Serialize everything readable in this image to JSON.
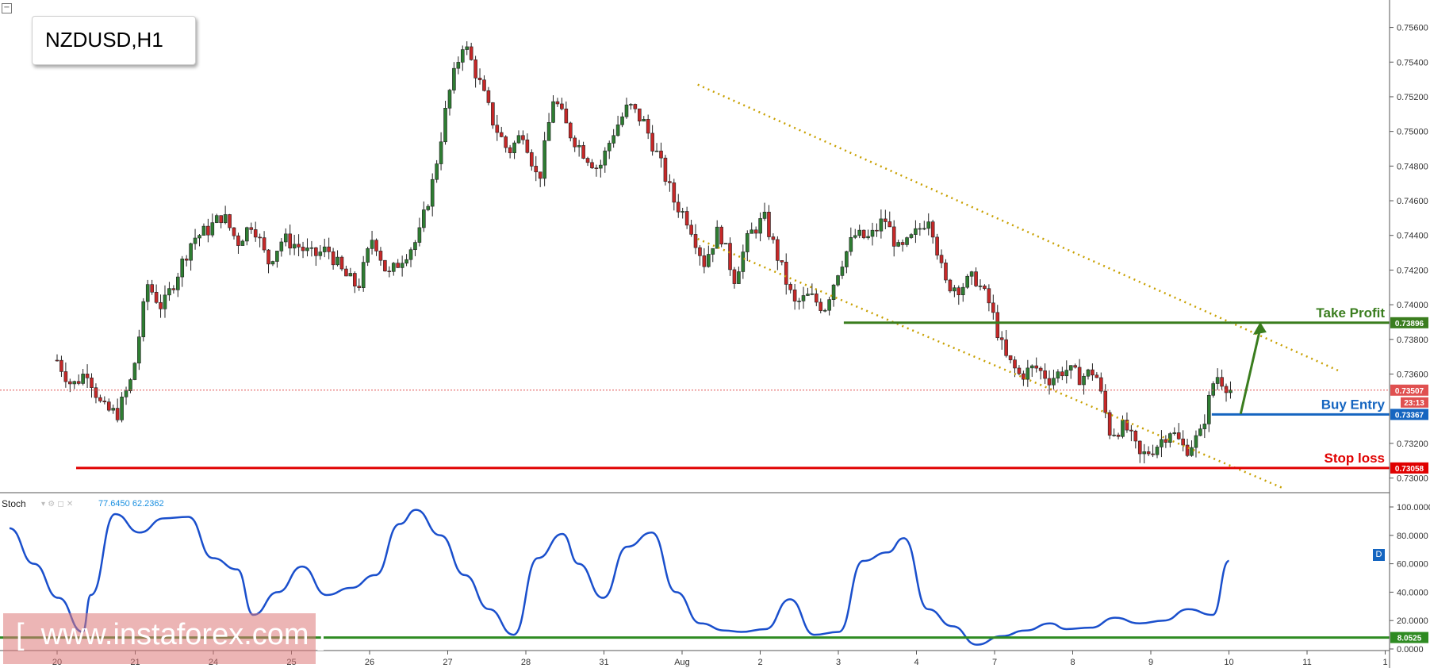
{
  "symbol": "NZDUSD,H1",
  "minimize_glyph": "−",
  "watermark": "[  www.instaforex.com ]",
  "stoch": {
    "label": "Stoch",
    "k_value": "77.6450",
    "d_value": "62.2362",
    "badge": "D"
  },
  "colors": {
    "bull": "#2e7d32",
    "bear": "#c62828",
    "take_profit": "#3a7d1e",
    "buy_entry": "#1565c0",
    "stop_loss": "#e00000",
    "channel": "#c8a000",
    "stoch_line": "#1a4fcc",
    "stoch_level": "#2e8b22"
  },
  "chart_data": [
    {
      "type": "candlestick",
      "title": "NZDUSD,H1",
      "ylim": [
        0.7292,
        0.7574
      ],
      "y_ticks": [
        "0.75600",
        "0.75400",
        "0.75200",
        "0.75000",
        "0.74800",
        "0.74600",
        "0.74400",
        "0.74200",
        "0.74000",
        "0.73800",
        "0.73600",
        "0.73200",
        "0.73000"
      ],
      "x_ticks": [
        "20",
        "21",
        "24",
        "25",
        "26",
        "27",
        "28",
        "31",
        "Aug",
        "2",
        "3",
        "4",
        "7",
        "8",
        "9",
        "10",
        "11",
        "1"
      ],
      "x_ticks_index": [
        0,
        1,
        2,
        3,
        4,
        5,
        6,
        7,
        8,
        9,
        10,
        11,
        12,
        13,
        14,
        15,
        16,
        17
      ],
      "current_price": "0.73507",
      "countdown": "23:13",
      "price_path": [
        [
          0,
          0.7368
        ],
        [
          1,
          0.7353
        ],
        [
          2,
          0.7362
        ],
        [
          3,
          0.734
        ],
        [
          4,
          0.7337
        ],
        [
          5,
          0.7358
        ],
        [
          6,
          0.7412
        ],
        [
          7,
          0.7398
        ],
        [
          8,
          0.7418
        ],
        [
          9,
          0.7438
        ],
        [
          10,
          0.7443
        ],
        [
          11,
          0.7452
        ],
        [
          12,
          0.7436
        ],
        [
          13,
          0.7448
        ],
        [
          14,
          0.7424
        ],
        [
          15,
          0.7438
        ],
        [
          16,
          0.7434
        ],
        [
          17,
          0.7428
        ],
        [
          18,
          0.7432
        ],
        [
          19,
          0.7418
        ],
        [
          20,
          0.741
        ],
        [
          21,
          0.744
        ],
        [
          22,
          0.7416
        ],
        [
          23,
          0.7428
        ],
        [
          24,
          0.7438
        ],
        [
          25,
          0.7472
        ],
        [
          26,
          0.752
        ],
        [
          27,
          0.7552
        ],
        [
          28,
          0.753
        ],
        [
          29,
          0.7505
        ],
        [
          30,
          0.7488
        ],
        [
          31,
          0.75
        ],
        [
          32,
          0.747
        ],
        [
          33,
          0.752
        ],
        [
          34,
          0.75
        ],
        [
          35,
          0.7488
        ],
        [
          36,
          0.7478
        ],
        [
          37,
          0.75
        ],
        [
          38,
          0.7515
        ],
        [
          39,
          0.7505
        ],
        [
          40,
          0.7484
        ],
        [
          41,
          0.746
        ],
        [
          42,
          0.7448
        ],
        [
          43,
          0.7424
        ],
        [
          44,
          0.7444
        ],
        [
          45,
          0.7415
        ],
        [
          46,
          0.744
        ],
        [
          47,
          0.745
        ],
        [
          48,
          0.7425
        ],
        [
          49,
          0.74
        ],
        [
          50,
          0.7405
        ],
        [
          51,
          0.7398
        ],
        [
          52,
          0.7422
        ],
        [
          53,
          0.744
        ],
        [
          54,
          0.7438
        ],
        [
          55,
          0.745
        ],
        [
          56,
          0.743
        ],
        [
          57,
          0.744
        ],
        [
          58,
          0.7452
        ],
        [
          59,
          0.7412
        ],
        [
          60,
          0.741
        ],
        [
          61,
          0.7416
        ],
        [
          62,
          0.74
        ],
        [
          63,
          0.737
        ],
        [
          64,
          0.7359
        ],
        [
          65,
          0.7364
        ],
        [
          66,
          0.7357
        ],
        [
          67,
          0.7363
        ],
        [
          68,
          0.7358
        ],
        [
          69,
          0.7362
        ],
        [
          70,
          0.7326
        ],
        [
          71,
          0.733
        ],
        [
          72,
          0.7312
        ],
        [
          73,
          0.7318
        ],
        [
          74,
          0.7328
        ],
        [
          75,
          0.7316
        ],
        [
          76,
          0.7325
        ],
        [
          77,
          0.736
        ],
        [
          78,
          0.7351
        ]
      ],
      "levels": [
        {
          "name": "Take Profit",
          "value": 0.73896,
          "label": "0.73896"
        },
        {
          "name": "Buy Entry",
          "value": 0.73367,
          "label": "0.73367"
        },
        {
          "name": "Stop loss",
          "value": 0.73058,
          "label": "0.73058"
        }
      ],
      "channel": {
        "upper": [
          [
            8.2,
            0.7527
          ],
          [
            16.4,
            0.7362
          ]
        ],
        "lower": [
          [
            8.2,
            0.7438
          ],
          [
            15.7,
            0.7294
          ]
        ]
      },
      "target_arrow": {
        "from": [
          15.15,
          0.7337
        ],
        "to": [
          15.4,
          0.739
        ]
      }
    },
    {
      "type": "line",
      "title": "Stoch",
      "ylim": [
        0,
        100
      ],
      "y_ticks": [
        "100.0000",
        "80.0000",
        "60.0000",
        "40.0000",
        "20.0000",
        "0.0000"
      ],
      "level": {
        "value": 8.0525,
        "label": "8.0525"
      },
      "x": [
        0,
        0.3,
        0.6,
        0.9,
        1.0,
        1.3,
        1.6,
        1.9,
        2.2,
        2.5,
        2.8,
        3.0,
        3.3,
        3.6,
        3.9,
        4.2,
        4.5,
        4.8,
        5.0,
        5.3,
        5.6,
        5.9,
        6.2,
        6.5,
        6.8,
        7.0,
        7.3,
        7.6,
        7.9,
        8.2,
        8.5,
        8.8,
        9.0,
        9.3,
        9.6,
        9.9,
        10.2,
        10.5,
        10.8,
        11.0,
        11.3,
        11.6,
        11.9,
        12.2,
        12.5,
        12.8,
        13.0,
        13.3,
        13.6,
        13.9,
        14.2,
        14.5,
        14.8,
        15.0
      ],
      "values": [
        85,
        60,
        36,
        12,
        38,
        95,
        82,
        92,
        93,
        64,
        56,
        24,
        40,
        58,
        38,
        43,
        52,
        88,
        98,
        80,
        52,
        28,
        10,
        64,
        81,
        60,
        36,
        72,
        82,
        40,
        18,
        13,
        12,
        14,
        35,
        10,
        12,
        62,
        68,
        78,
        28,
        16,
        3,
        9,
        13,
        18,
        14,
        15,
        22,
        18,
        20,
        28,
        24,
        62
      ]
    }
  ]
}
